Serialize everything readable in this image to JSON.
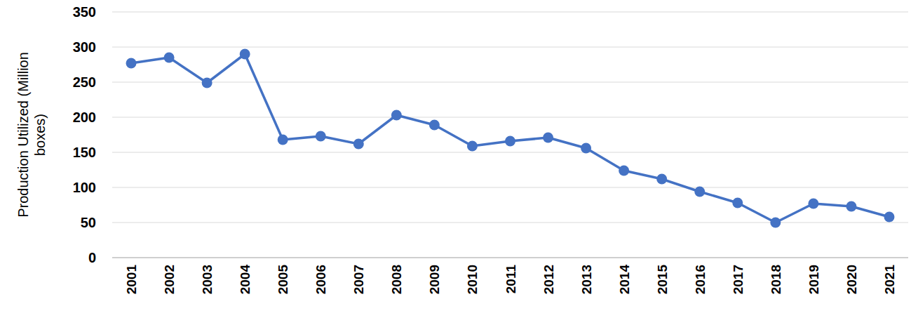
{
  "chart_data": {
    "type": "line",
    "y_label": "Production Utilized (Million boxes)",
    "categories": [
      "2001",
      "2002",
      "2003",
      "2004",
      "2005",
      "2006",
      "2007",
      "2008",
      "2009",
      "2010",
      "2011",
      "2012",
      "2013",
      "2014",
      "2015",
      "2016",
      "2017",
      "2018",
      "2019",
      "2020",
      "2021"
    ],
    "values": [
      277,
      285,
      249,
      290,
      168,
      173,
      162,
      203,
      189,
      159,
      166,
      171,
      156,
      124,
      112,
      94,
      78,
      50,
      77,
      73,
      58
    ],
    "color": "#4472c4",
    "marker": "circle",
    "line_style": "solid",
    "ylim": [
      0,
      350
    ],
    "yticks": [
      0,
      50,
      100,
      150,
      200,
      250,
      300,
      350
    ],
    "grid": true
  }
}
